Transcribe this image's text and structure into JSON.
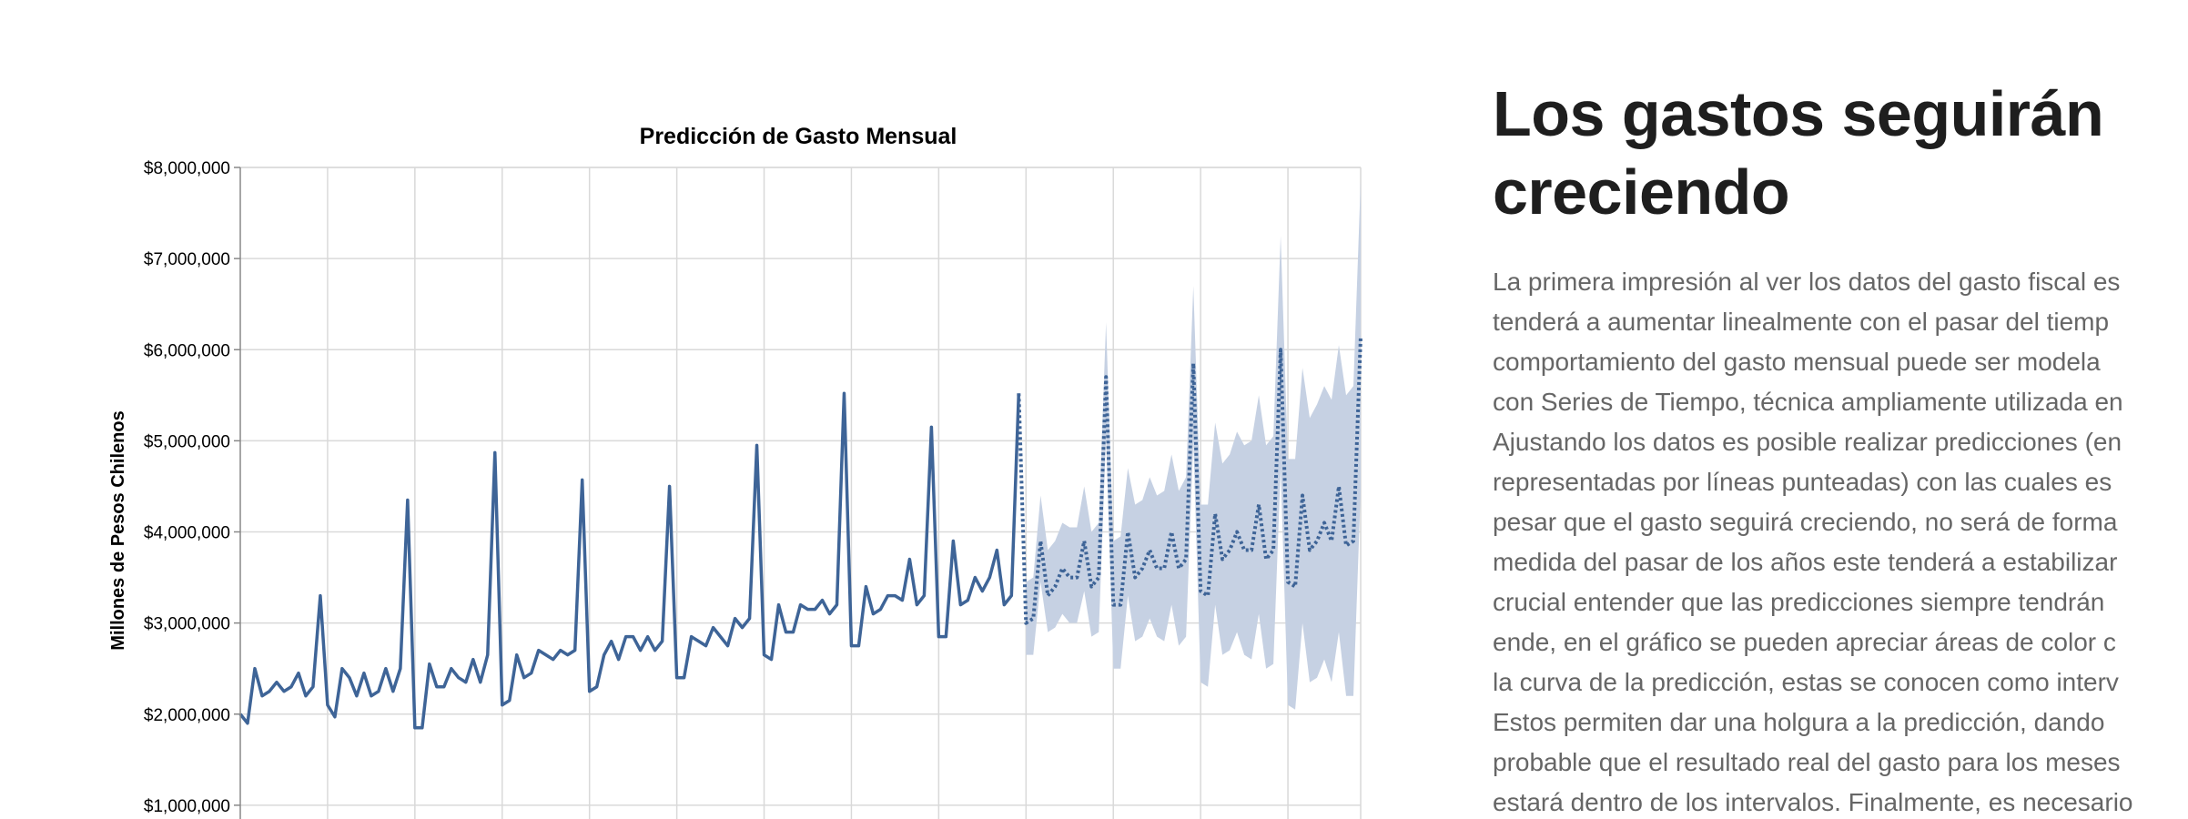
{
  "chart_data": {
    "type": "line",
    "title": "Predicción de Gasto Mensual",
    "y_label": "Millones de Pesos Chilenos",
    "xlim": [
      0,
      154
    ],
    "xticks": [
      12,
      24,
      36,
      48,
      60,
      72,
      84,
      96,
      108,
      120,
      132,
      144
    ],
    "ylim": [
      0,
      8000000
    ],
    "yticks": [
      {
        "value": 1000000,
        "label": "$1,000,000"
      },
      {
        "value": 2000000,
        "label": "$2,000,000"
      },
      {
        "value": 3000000,
        "label": "$3,000,000"
      },
      {
        "value": 4000000,
        "label": "$4,000,000"
      },
      {
        "value": 5000000,
        "label": "$5,000,000"
      },
      {
        "value": 6000000,
        "label": "$6,000,000"
      },
      {
        "value": 7000000,
        "label": "$7,000,000"
      },
      {
        "value": 8000000,
        "label": "$8,000,000"
      }
    ],
    "grid": true,
    "band": {
      "color": "#c6d1e3",
      "lower": [
        null,
        null,
        null,
        null,
        null,
        null,
        null,
        null,
        null,
        null,
        null,
        null,
        null,
        null,
        null,
        null,
        null,
        null,
        null,
        null,
        null,
        null,
        null,
        null,
        null,
        null,
        null,
        null,
        null,
        null,
        null,
        null,
        null,
        null,
        null,
        null,
        null,
        null,
        null,
        null,
        null,
        null,
        null,
        null,
        null,
        null,
        null,
        null,
        null,
        null,
        null,
        null,
        null,
        null,
        null,
        null,
        null,
        null,
        null,
        null,
        null,
        null,
        null,
        null,
        null,
        null,
        null,
        null,
        null,
        null,
        null,
        null,
        null,
        null,
        null,
        null,
        null,
        null,
        null,
        null,
        null,
        null,
        null,
        null,
        null,
        null,
        null,
        null,
        null,
        null,
        null,
        null,
        null,
        null,
        null,
        null,
        null,
        null,
        null,
        null,
        null,
        null,
        null,
        null,
        null,
        null,
        null,
        null,
        2650000,
        2650000,
        3450000,
        2900000,
        2950000,
        3100000,
        3000000,
        3000000,
        3350000,
        2850000,
        2900000,
        5050000,
        2500000,
        2500000,
        3300000,
        2800000,
        2850000,
        3050000,
        2850000,
        2800000,
        3200000,
        2750000,
        2850000,
        5000000,
        2350000,
        2300000,
        3200000,
        2650000,
        2700000,
        2900000,
        2650000,
        2600000,
        3100000,
        2500000,
        2550000,
        4700000,
        2100000,
        2050000,
        3000000,
        2350000,
        2400000,
        2600000,
        2350000,
        2900000,
        2200000,
        2200000,
        4450000
      ],
      "upper": [
        null,
        null,
        null,
        null,
        null,
        null,
        null,
        null,
        null,
        null,
        null,
        null,
        null,
        null,
        null,
        null,
        null,
        null,
        null,
        null,
        null,
        null,
        null,
        null,
        null,
        null,
        null,
        null,
        null,
        null,
        null,
        null,
        null,
        null,
        null,
        null,
        null,
        null,
        null,
        null,
        null,
        null,
        null,
        null,
        null,
        null,
        null,
        null,
        null,
        null,
        null,
        null,
        null,
        null,
        null,
        null,
        null,
        null,
        null,
        null,
        null,
        null,
        null,
        null,
        null,
        null,
        null,
        null,
        null,
        null,
        null,
        null,
        null,
        null,
        null,
        null,
        null,
        null,
        null,
        null,
        null,
        null,
        null,
        null,
        null,
        null,
        null,
        null,
        null,
        null,
        null,
        null,
        null,
        null,
        null,
        null,
        null,
        null,
        null,
        null,
        null,
        null,
        null,
        null,
        null,
        null,
        null,
        null,
        3450000,
        3500000,
        4400000,
        3800000,
        3900000,
        4100000,
        4050000,
        4050000,
        4500000,
        4000000,
        4100000,
        6300000,
        3900000,
        3950000,
        4700000,
        4300000,
        4350000,
        4600000,
        4400000,
        4450000,
        4850000,
        4450000,
        4600000,
        6700000,
        4300000,
        4300000,
        5200000,
        4750000,
        4850000,
        5100000,
        4950000,
        5000000,
        5500000,
        4950000,
        5050000,
        7250000,
        4800000,
        4800000,
        5800000,
        5250000,
        5400000,
        5600000,
        5450000,
        6050000,
        5500000,
        5600000,
        7850000
      ]
    },
    "series": [
      {
        "color": "#3e6497",
        "style": "solid",
        "values": [
          2000000,
          1900000,
          2500000,
          2200000,
          2250000,
          2350000,
          2250000,
          2300000,
          2450000,
          2200000,
          2300000,
          3300000,
          2100000,
          1970000,
          2500000,
          2400000,
          2200000,
          2450000,
          2200000,
          2250000,
          2500000,
          2250000,
          2500000,
          4350000,
          1850000,
          1850000,
          2550000,
          2300000,
          2300000,
          2500000,
          2400000,
          2350000,
          2600000,
          2350000,
          2650000,
          4870000,
          2100000,
          2150000,
          2650000,
          2400000,
          2450000,
          2700000,
          2650000,
          2600000,
          2700000,
          2650000,
          2700000,
          4570000,
          2250000,
          2300000,
          2650000,
          2800000,
          2600000,
          2850000,
          2850000,
          2700000,
          2850000,
          2700000,
          2800000,
          4500000,
          2400000,
          2400000,
          2850000,
          2800000,
          2750000,
          2950000,
          2850000,
          2750000,
          3050000,
          2950000,
          3050000,
          4950000,
          2650000,
          2600000,
          3200000,
          2900000,
          2900000,
          3200000,
          3150000,
          3150000,
          3250000,
          3100000,
          3200000,
          5520000,
          2750000,
          2750000,
          3400000,
          3100000,
          3150000,
          3300000,
          3300000,
          3250000,
          3700000,
          3200000,
          3300000,
          5150000,
          2850000,
          2850000,
          3900000,
          3200000,
          3250000,
          3500000,
          3350000,
          3500000,
          3800000,
          3200000,
          3300000,
          5520000,
          null,
          null,
          null,
          null,
          null,
          null,
          null,
          null,
          null,
          null,
          null,
          null,
          null,
          null,
          null,
          null,
          null,
          null,
          null,
          null,
          null,
          null,
          null,
          null,
          null,
          null,
          null,
          null,
          null,
          null,
          null,
          null,
          null,
          null,
          null,
          null,
          null,
          null,
          null,
          null,
          null,
          null,
          null,
          null,
          null,
          null,
          null
        ]
      },
      {
        "color": "#3e6497",
        "style": "dotted",
        "values": [
          null,
          null,
          null,
          null,
          null,
          null,
          null,
          null,
          null,
          null,
          null,
          null,
          null,
          null,
          null,
          null,
          null,
          null,
          null,
          null,
          null,
          null,
          null,
          null,
          null,
          null,
          null,
          null,
          null,
          null,
          null,
          null,
          null,
          null,
          null,
          null,
          null,
          null,
          null,
          null,
          null,
          null,
          null,
          null,
          null,
          null,
          null,
          null,
          null,
          null,
          null,
          null,
          null,
          null,
          null,
          null,
          null,
          null,
          null,
          null,
          null,
          null,
          null,
          null,
          null,
          null,
          null,
          null,
          null,
          null,
          null,
          null,
          null,
          null,
          null,
          null,
          null,
          null,
          null,
          null,
          null,
          null,
          null,
          null,
          null,
          null,
          null,
          null,
          null,
          null,
          null,
          null,
          null,
          null,
          null,
          null,
          null,
          null,
          null,
          null,
          null,
          null,
          null,
          null,
          null,
          null,
          null,
          5520000,
          3000000,
          3050000,
          3900000,
          3300000,
          3400000,
          3600000,
          3500000,
          3500000,
          3900000,
          3400000,
          3500000,
          5700000,
          3200000,
          3200000,
          4000000,
          3500000,
          3600000,
          3800000,
          3600000,
          3600000,
          4000000,
          3600000,
          3700000,
          5850000,
          3350000,
          3300000,
          4200000,
          3700000,
          3800000,
          4000000,
          3800000,
          3800000,
          4300000,
          3700000,
          3800000,
          6000000,
          3450000,
          3400000,
          4400000,
          3800000,
          3900000,
          4100000,
          3900000,
          4500000,
          3850000,
          3900000,
          6150000
        ]
      }
    ]
  },
  "article": {
    "title_lines": [
      "Los gastos seguirán",
      "creciendo"
    ],
    "paragraph_lines": [
      "La primera impresión al ver los datos del gasto fiscal es",
      "tenderá a aumentar linealmente con el pasar del tiemp",
      "comportamiento del gasto mensual puede ser modela",
      "con Series de Tiempo, técnica ampliamente utilizada en",
      "Ajustando los datos es posible realizar predicciones (en",
      "representadas por líneas punteadas) con las cuales es",
      "pesar que el gasto seguirá creciendo, no será de forma",
      "medida del pasar de los años este tenderá a estabilizar",
      "crucial entender que las predicciones siempre tendrán",
      "ende, en el gráfico se pueden apreciar áreas de color c",
      "la curva de la predicción, estas se conocen como interv",
      "Estos permiten dar una holgura a la predicción, dando",
      "probable que el resultado real del gasto para los meses",
      "estará dentro de los intervalos. Finalmente, es necesario"
    ]
  }
}
